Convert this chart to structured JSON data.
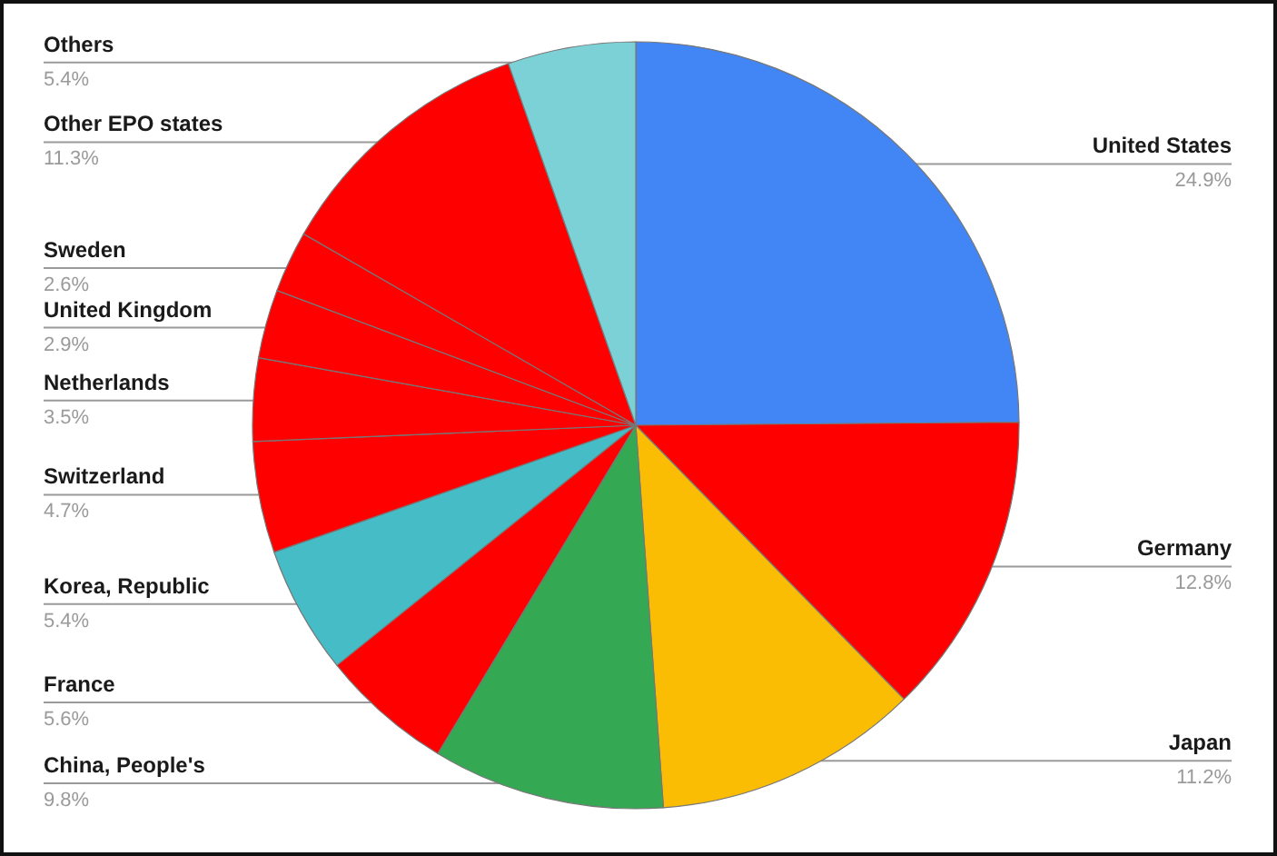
{
  "chart_data": {
    "type": "pie",
    "categories": [
      "United States",
      "Germany",
      "Japan",
      "China, People's",
      "France",
      "Korea, Republic",
      "Switzerland",
      "Netherlands",
      "United Kingdom",
      "Sweden",
      "Other EPO states",
      "Others"
    ],
    "values": [
      24.9,
      12.8,
      11.2,
      9.8,
      5.6,
      5.4,
      4.7,
      3.5,
      2.9,
      2.6,
      11.3,
      5.4
    ],
    "value_labels": [
      "24.9%",
      "12.8%",
      "11.2%",
      "9.8%",
      "5.6%",
      "5.4%",
      "4.7%",
      "3.5%",
      "2.9%",
      "2.6%",
      "11.3%",
      "5.4%"
    ],
    "colors": [
      "#4285f4",
      "#ff0000",
      "#fbbc04",
      "#34a853",
      "#ff0000",
      "#46bdc6",
      "#ff0000",
      "#ff0000",
      "#ff0000",
      "#ff0000",
      "#ff0000",
      "#7bd1d6"
    ]
  }
}
